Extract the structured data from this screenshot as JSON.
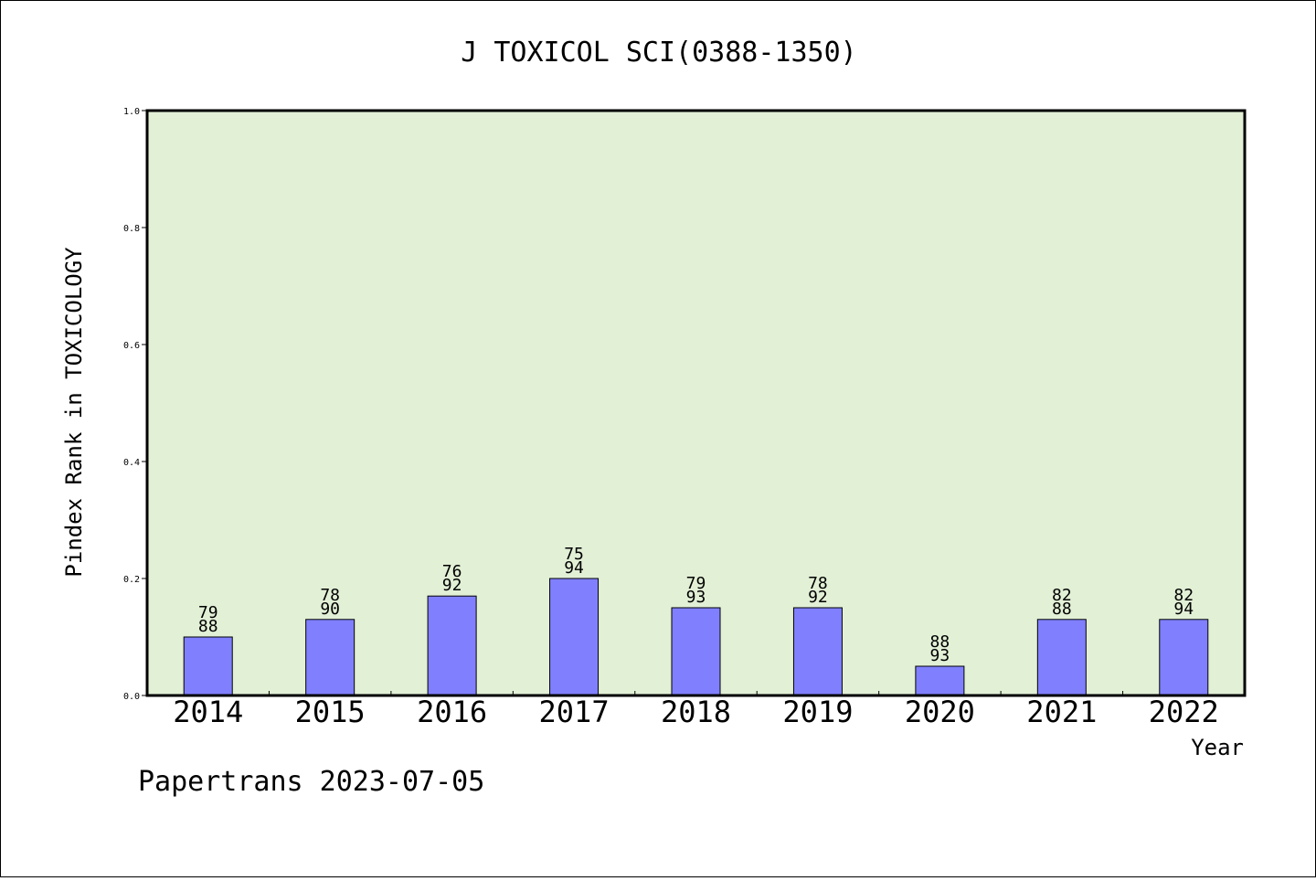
{
  "chart_data": {
    "type": "bar",
    "title": "J TOXICOL SCI(0388-1350)",
    "xlabel": "Year",
    "ylabel": "Pindex Rank in TOXICOLOGY",
    "ylim": [
      0,
      1.0
    ],
    "yticks": [
      "0.0",
      "0.2",
      "0.4",
      "0.6",
      "0.8",
      "1.0"
    ],
    "categories": [
      "2014",
      "2015",
      "2016",
      "2017",
      "2018",
      "2019",
      "2020",
      "2021",
      "2022"
    ],
    "values": [
      0.1,
      0.13,
      0.17,
      0.2,
      0.15,
      0.15,
      0.05,
      0.13,
      0.13
    ],
    "label_top": [
      "79",
      "78",
      "76",
      "75",
      "79",
      "78",
      "88",
      "82",
      "82"
    ],
    "label_bottom": [
      "88",
      "90",
      "92",
      "94",
      "93",
      "92",
      "93",
      "88",
      "94"
    ],
    "grid": false,
    "colors": {
      "plot_background": "#e2f0d6",
      "bar_fill": "#8080ff",
      "bar_stroke": "#000000"
    }
  },
  "footer": {
    "text": "Papertrans 2023-07-05"
  }
}
